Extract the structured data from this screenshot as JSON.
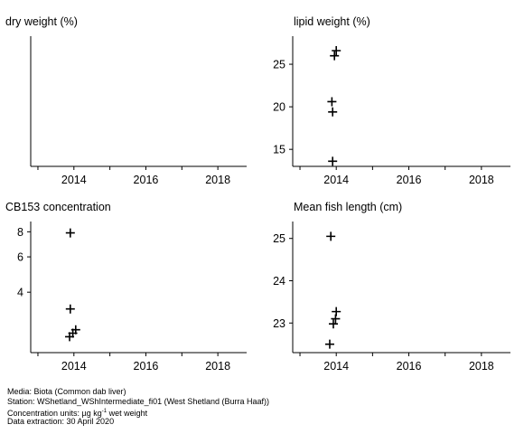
{
  "chart_data": [
    {
      "type": "scatter",
      "title": "dry weight (%)",
      "x_ticks": [
        2014,
        2016,
        2018
      ],
      "xlim": [
        2012.8,
        2018.8
      ],
      "y_ticks": [],
      "ylim": [
        0,
        1
      ],
      "points": []
    },
    {
      "type": "scatter",
      "title": "lipid weight (%)",
      "x_ticks": [
        2014,
        2016,
        2018
      ],
      "xlim": [
        2012.8,
        2018.8
      ],
      "y_ticks": [
        15,
        20,
        25
      ],
      "ylim": [
        13,
        28.3
      ],
      "points": [
        {
          "x": 2013.9,
          "y": 13.6
        },
        {
          "x": 2013.9,
          "y": 19.4
        },
        {
          "x": 2013.88,
          "y": 20.6
        },
        {
          "x": 2013.95,
          "y": 26.0
        },
        {
          "x": 2014.0,
          "y": 26.6
        }
      ]
    },
    {
      "type": "scatter",
      "title": "CB153 concentration",
      "x_ticks": [
        2014,
        2016,
        2018
      ],
      "xlim": [
        2012.8,
        2018.8
      ],
      "y_ticks": [
        4,
        6,
        8
      ],
      "y_tick_values": [
        4,
        6,
        8
      ],
      "ylim": [
        2.0,
        9.0
      ],
      "y_log": true,
      "points": [
        {
          "x": 2013.9,
          "y": 7.9
        },
        {
          "x": 2013.9,
          "y": 3.3
        },
        {
          "x": 2014.05,
          "y": 2.6
        },
        {
          "x": 2013.97,
          "y": 2.5
        },
        {
          "x": 2013.88,
          "y": 2.4
        }
      ]
    },
    {
      "type": "scatter",
      "title": "Mean fish length (cm)",
      "x_ticks": [
        2014,
        2016,
        2018
      ],
      "xlim": [
        2012.8,
        2018.8
      ],
      "y_ticks": [
        23,
        24,
        25
      ],
      "ylim": [
        22.3,
        25.4
      ],
      "points": [
        {
          "x": 2013.85,
          "y": 25.05
        },
        {
          "x": 2014.0,
          "y": 23.27
        },
        {
          "x": 2013.98,
          "y": 23.1
        },
        {
          "x": 2013.92,
          "y": 22.98
        },
        {
          "x": 2013.82,
          "y": 22.5
        }
      ]
    }
  ],
  "footer": {
    "media": "Media: Biota (Common dab liver)",
    "station": "Station: WShetland_WShIntermediate_fi01 (West Shetland (Burra Haaf))",
    "units_prefix": "Concentration units:  µg kg",
    "units_sup": "-1",
    "units_suffix": " wet weight",
    "extraction": "Data extraction: 30 April 2020"
  }
}
